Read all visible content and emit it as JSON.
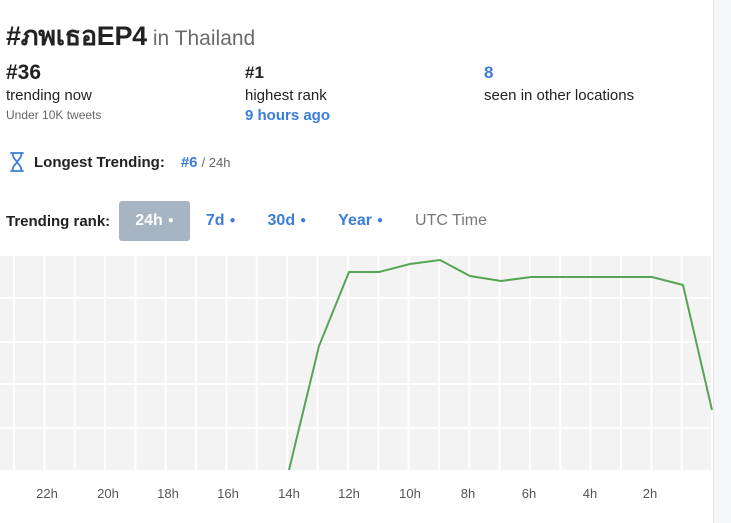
{
  "header": {
    "hashtag": "#ภพเธอEP4",
    "location": "in Thailand"
  },
  "stats": {
    "current": {
      "value": "#36",
      "label": "trending now",
      "sub": "Under 10K tweets"
    },
    "highest": {
      "value": "#1",
      "label": "highest rank",
      "link": "9 hours ago"
    },
    "others": {
      "value": "8",
      "label": "seen in other locations"
    }
  },
  "longest": {
    "icon": "hourglass-icon",
    "label": "Longest Trending:",
    "rank": "#6",
    "duration": "/ 24h"
  },
  "trending_rank": {
    "label": "Trending rank:",
    "tabs": [
      {
        "label": "24h",
        "active": true
      },
      {
        "label": "7d",
        "active": false
      },
      {
        "label": "30d",
        "active": false
      },
      {
        "label": "Year",
        "active": false
      }
    ],
    "utc_label": "UTC Time"
  },
  "colors": {
    "accent_blue": "#3b7dd8",
    "active_tab_bg": "#a7b4c2",
    "line_green": "#55a555",
    "grid_bg": "#f3f3f3"
  },
  "chart_data": {
    "type": "line",
    "x_tick_labels": [
      "22h",
      "20h",
      "18h",
      "16h",
      "14h",
      "12h",
      "10h",
      "8h",
      "6h",
      "4h",
      "2h"
    ],
    "x_hours_ago": [
      13,
      12,
      11,
      10,
      9,
      8,
      7,
      6,
      5,
      4,
      3,
      2,
      1,
      0
    ],
    "rank": [
      50,
      21,
      3,
      3,
      1.5,
      0.5,
      4,
      5,
      4,
      4,
      4,
      4,
      4,
      4,
      6,
      36
    ],
    "x_hours_ago_full": [
      14,
      13,
      12,
      11,
      10,
      9,
      8,
      7,
      6,
      5,
      4,
      3,
      2,
      1,
      0.5,
      -0.3
    ],
    "y_inverted": true,
    "grid": true,
    "color": "#55a555"
  }
}
